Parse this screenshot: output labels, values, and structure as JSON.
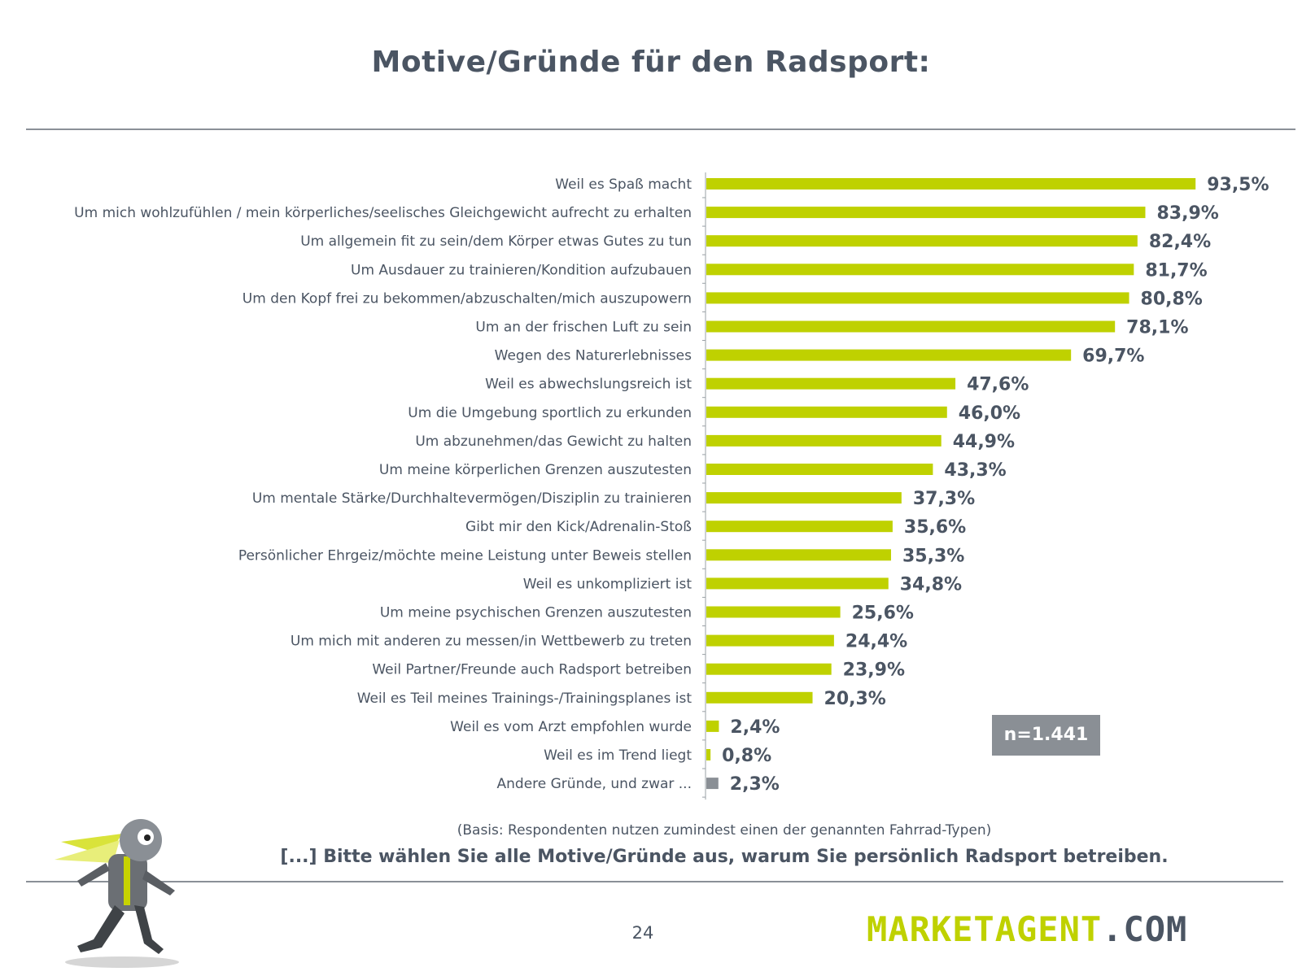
{
  "title": "Motive/Gründe für den Radsport:",
  "n_label": "n=1.441",
  "basis": "(Basis: Respondenten nutzen zumindest einen der genannten Fahrrad-Typen)",
  "question": "[...] Bitte wählen Sie alle Motive/Gründe aus, warum Sie persönlich Radsport betreiben.",
  "page_number": "24",
  "logo": {
    "part1": "MARKETAGENT",
    "part2": ".COM"
  },
  "colors": {
    "bar": "#bfd100",
    "bar_other": "#8a8f95",
    "text": "#4b5563"
  },
  "chart_data": {
    "type": "bar",
    "orientation": "horizontal",
    "unit": "%",
    "categories": [
      "Weil es Spaß macht",
      "Um mich wohlzufühlen / mein körperliches/seelisches Gleichgewicht aufrecht zu erhalten",
      "Um allgemein fit zu sein/dem Körper etwas Gutes zu tun",
      "Um Ausdauer zu trainieren/Kondition aufzubauen",
      "Um den Kopf frei zu bekommen/abzuschalten/mich auszupowern",
      "Um an der frischen Luft zu sein",
      "Wegen des Naturerlebnisses",
      "Weil es abwechslungsreich ist",
      "Um die Umgebung sportlich zu erkunden",
      "Um abzunehmen/das Gewicht zu halten",
      "Um meine körperlichen Grenzen auszutesten",
      "Um mentale Stärke/Durchhaltevermögen/Disziplin zu trainieren",
      "Gibt mir den Kick/Adrenalin-Stoß",
      "Persönlicher Ehrgeiz/möchte meine Leistung unter Beweis stellen",
      "Weil es unkompliziert ist",
      "Um meine psychischen Grenzen auszutesten",
      "Um mich mit anderen zu messen/in Wettbewerb zu treten",
      "Weil Partner/Freunde auch Radsport betreiben",
      "Weil es Teil meines Trainings-/Trainingsplanes ist",
      "Weil es vom Arzt empfohlen wurde",
      "Weil es im Trend liegt",
      "Andere Gründe, und zwar ..."
    ],
    "values": [
      93.5,
      83.9,
      82.4,
      81.7,
      80.8,
      78.1,
      69.7,
      47.6,
      46.0,
      44.9,
      43.3,
      37.3,
      35.6,
      35.3,
      34.8,
      25.6,
      24.4,
      23.9,
      20.3,
      2.4,
      0.8,
      2.3
    ],
    "value_labels": [
      "93,5%",
      "83,9%",
      "82,4%",
      "81,7%",
      "80,8%",
      "78,1%",
      "69,7%",
      "47,6%",
      "46,0%",
      "44,9%",
      "43,3%",
      "37,3%",
      "35,6%",
      "35,3%",
      "34,8%",
      "25,6%",
      "24,4%",
      "23,9%",
      "20,3%",
      "2,4%",
      "0,8%",
      "2,3%"
    ],
    "highlight_last_gray": true,
    "xlim": [
      0,
      100
    ],
    "grid": false
  }
}
